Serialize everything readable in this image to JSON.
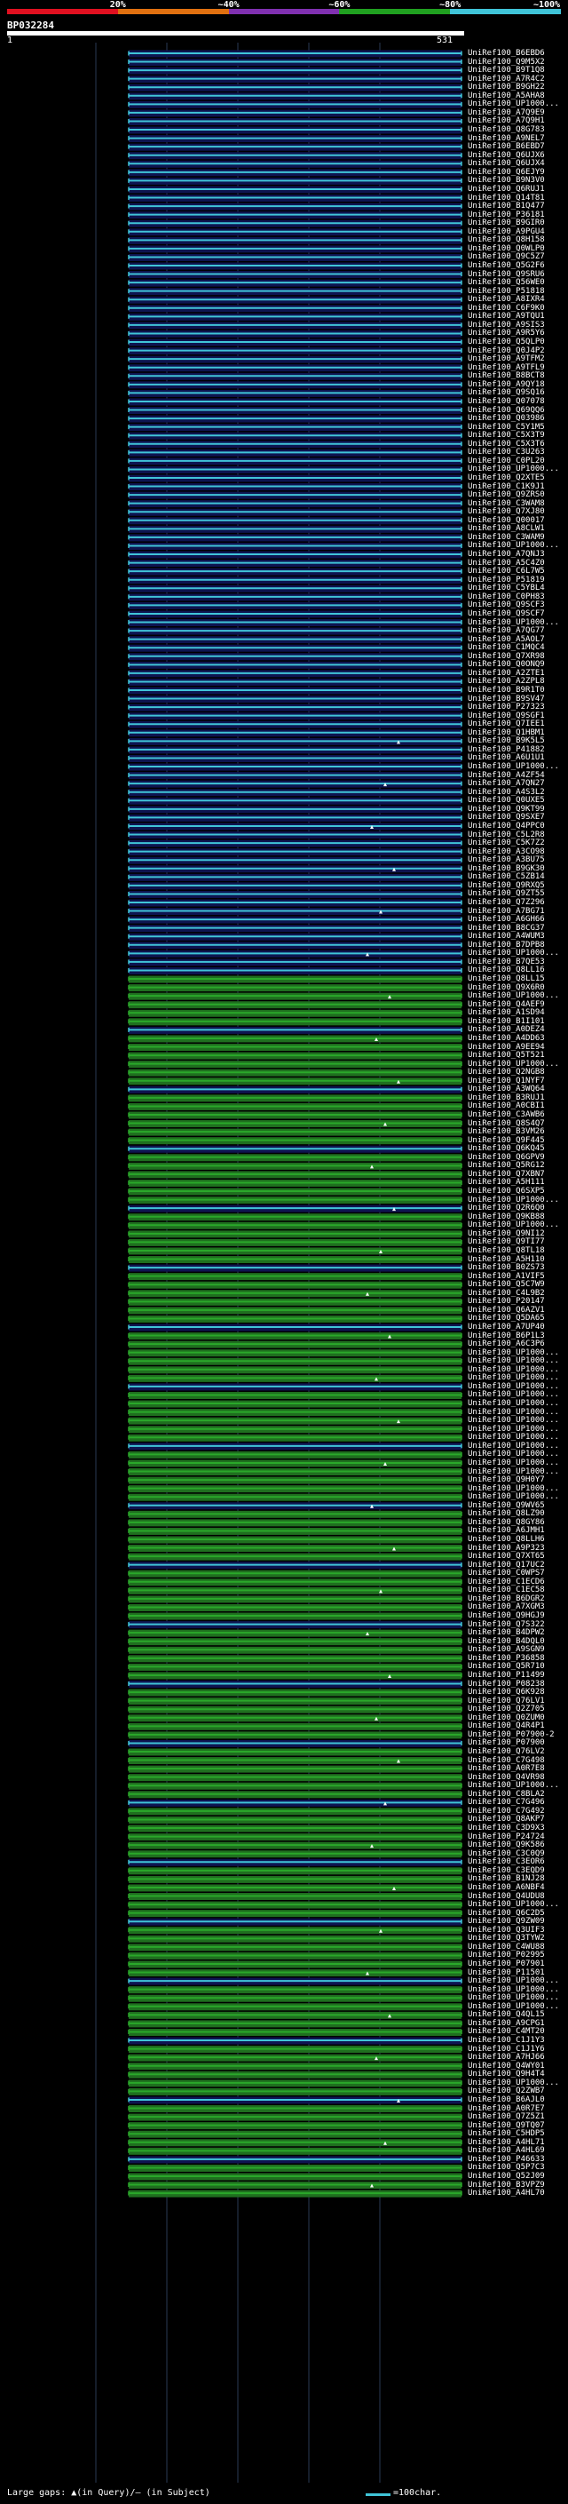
{
  "legend": {
    "colors": [
      "#e01020",
      "#e07010",
      "#8030b0",
      "#20a020",
      "#40c4d8"
    ],
    "labels": [
      "20%",
      "~40%",
      "~60%",
      "~80%",
      "~100%"
    ]
  },
  "query": {
    "name": "BP032284",
    "start": "1",
    "end": "531"
  },
  "footer": {
    "gaps": "Large gaps: ▲(in Query)/– (in Subject)",
    "scale": "=100char."
  },
  "hit_colors": {
    "cyan": "#40c4d8",
    "green": "#2aa82a",
    "navy": "#0e1450",
    "gridline": "#2a3a55"
  },
  "hit_labels": [
    "UniRef100_B6EBD6",
    "UniRef100_Q9M5X2",
    "UniRef100_B9T1Q8",
    "UniRef100_A7R4C2",
    "UniRef100_B9GH22",
    "UniRef100_A5AHA8",
    "UniRef100_UP1000...",
    "UniRef100_A7Q9E9",
    "UniRef100_A7Q9H1",
    "UniRef100_Q8G783",
    "UniRef100_A9NEL7",
    "UniRef100_B6EBD7",
    "UniRef100_Q6UJX6",
    "UniRef100_Q6UJX4",
    "UniRef100_Q6EJY9",
    "UniRef100_B9N3V0",
    "UniRef100_Q6RUJ1",
    "UniRef100_Q14T81",
    "UniRef100_B1Q477",
    "UniRef100_P36181",
    "UniRef100_B9GIR0",
    "UniRef100_A9PGU4",
    "UniRef100_Q8H158",
    "UniRef100_Q0WLP0",
    "UniRef100_Q9C5Z7",
    "UniRef100_Q5G2F6",
    "UniRef100_Q9SRU6",
    "UniRef100_Q56WE0",
    "UniRef100_P51818",
    "UniRef100_A8IXR4",
    "UniRef100_C6F9K0",
    "UniRef100_A9TQU1",
    "UniRef100_A9SIS3",
    "UniRef100_A9R5Y6",
    "UniRef100_Q5QLP0",
    "UniRef100_Q0J4P2",
    "UniRef100_A9TFM2",
    "UniRef100_A9TFL9",
    "UniRef100_B8BCT8",
    "UniRef100_A9QY18",
    "UniRef100_Q9SQ16",
    "UniRef100_Q07078",
    "UniRef100_Q69QQ6",
    "UniRef100_Q03986",
    "UniRef100_C5Y1M5",
    "UniRef100_C5X3T9",
    "UniRef100_C5X3T6",
    "UniRef100_C3U263",
    "UniRef100_C0PL20",
    "UniRef100_UP1000...",
    "UniRef100_Q2XTE5",
    "UniRef100_C1K9J1",
    "UniRef100_Q9ZRS0",
    "UniRef100_C3WAM8",
    "UniRef100_Q7XJ80",
    "UniRef100_Q00017",
    "UniRef100_A8CLW1",
    "UniRef100_C3WAM9",
    "UniRef100_UP1000...",
    "UniRef100_A7QNJ3",
    "UniRef100_A5C4Z0",
    "UniRef100_C6L7W5",
    "UniRef100_P51819",
    "UniRef100_C5YBL4",
    "UniRef100_C0PH83",
    "UniRef100_Q9SCF3",
    "UniRef100_Q9SCF7",
    "UniRef100_UP1000...",
    "UniRef100_A7QG77",
    "UniRef100_A5AOL7",
    "UniRef100_C1MQC4",
    "UniRef100_Q7XR98",
    "UniRef100_Q0ONQ9",
    "UniRef100_A2ZTE1",
    "UniRef100_A2ZPL8",
    "UniRef100_B9R1T0",
    "UniRef100_B9SV47",
    "UniRef100_P27323",
    "UniRef100_Q9SGF1",
    "UniRef100_Q7IEE1",
    "UniRef100_Q1HBM1",
    "UniRef100_B9K5L5",
    "UniRef100_P41882",
    "UniRef100_A6U1U1",
    "UniRef100_UP1000...",
    "UniRef100_A4ZF54",
    "UniRef100_A7QN27",
    "UniRef100_A4S3L2",
    "UniRef100_Q0UXE5",
    "UniRef100_Q9KT99",
    "UniRef100_Q9SXE7",
    "UniRef100_Q4PPC0",
    "UniRef100_C5L2R8",
    "UniRef100_C5K7Z2",
    "UniRef100_A3CO98",
    "UniRef100_A3BU75",
    "UniRef100_B9GK30",
    "UniRef100_C5ZB14",
    "UniRef100_Q9RXQ5",
    "UniRef100_Q9ZT55",
    "UniRef100_Q7Z296",
    "UniRef100_A7BG71",
    "UniRef100_A6GH66",
    "UniRef100_B8CG37",
    "UniRef100_A4WUM3",
    "UniRef100_B7DPB8",
    "UniRef100_UP1000...",
    "UniRef100_B7QE53",
    "UniRef100_Q8LL16",
    "UniRef100_Q8LL15",
    "UniRef100_Q9X6R0",
    "UniRef100_UP1000...",
    "UniRef100_Q4AEF9",
    "UniRef100_A1SD94",
    "UniRef100_B1I101",
    "UniRef100_A0DEZ4",
    "UniRef100_A4DD63",
    "UniRef100_A9EE94",
    "UniRef100_Q5T521",
    "UniRef100_UP1000...",
    "UniRef100_Q2NGB8",
    "UniRef100_Q1NYF7",
    "UniRef100_A3WQ64",
    "UniRef100_B3RUJ1",
    "UniRef100_A0CBI1",
    "UniRef100_C3AWB6",
    "UniRef100_Q8S4Q7",
    "UniRef100_B3VM26",
    "UniRef100_Q9F445",
    "UniRef100_Q6KQ45",
    "UniRef100_Q6GPV9",
    "UniRef100_Q5RG12",
    "UniRef100_Q7XBN7",
    "UniRef100_A5H111",
    "UniRef100_Q6SXP5",
    "UniRef100_UP1000...",
    "UniRef100_Q2R6Q0",
    "UniRef100_Q9KB88",
    "UniRef100_UP1000...",
    "UniRef100_Q9NI12",
    "UniRef100_Q9TI77",
    "UniRef100_Q8TL18",
    "UniRef100_A5H110",
    "UniRef100_B0ZS73",
    "UniRef100_A1VIF5",
    "UniRef100_Q5C7W9",
    "UniRef100_C4L9B2",
    "UniRef100_P20147",
    "UniRef100_Q6AZV1",
    "UniRef100_Q5DA65",
    "UniRef100_A7UP40",
    "UniRef100_B6P1L3",
    "UniRef100_A6C3P6",
    "UniRef100_UP1000...",
    "UniRef100_UP1000...",
    "UniRef100_UP1000...",
    "UniRef100_UP1000...",
    "UniRef100_UP1000...",
    "UniRef100_UP1000...",
    "UniRef100_UP1000...",
    "UniRef100_UP1000...",
    "UniRef100_UP1000...",
    "UniRef100_UP1000...",
    "UniRef100_UP1000...",
    "UniRef100_UP1000...",
    "UniRef100_UP1000...",
    "UniRef100_UP1000...",
    "UniRef100_UP1000...",
    "UniRef100_Q9H0Y7",
    "UniRef100_UP1000...",
    "UniRef100_UP1000...",
    "UniRef100_Q9WV65",
    "UniRef100_Q8LZ90",
    "UniRef100_Q8GY86",
    "UniRef100_A6JMH1",
    "UniRef100_Q8LLH6",
    "UniRef100_A9P323",
    "UniRef100_Q7XT65",
    "UniRef100_Q17UC2",
    "UniRef100_C0WPS7",
    "UniRef100_C1ECD6",
    "UniRef100_C1EC58",
    "UniRef100_B6DGR2",
    "UniRef100_A7XGM3",
    "UniRef100_Q9HGJ9",
    "UniRef100_Q7S322",
    "UniRef100_B4DPW2",
    "UniRef100_B4DQL0",
    "UniRef100_A9SGN9",
    "UniRef100_P36858",
    "UniRef100_Q5R710",
    "UniRef100_P11499",
    "UniRef100_P08238",
    "UniRef100_Q6K928",
    "UniRef100_Q76LV1",
    "UniRef100_Q2Z705",
    "UniRef100_Q0ZUM0",
    "UniRef100_Q4R4P1",
    "UniRef100_P07900-2",
    "UniRef100_P07900",
    "UniRef100_Q76LV2",
    "UniRef100_C7G498",
    "UniRef100_A0R7E8",
    "UniRef100_Q4VR98",
    "UniRef100_UP1000...",
    "UniRef100_C8BLA2",
    "UniRef100_C7G496",
    "UniRef100_C7G492",
    "UniRef100_Q8AKP7",
    "UniRef100_C3D9X3",
    "UniRef100_P24724",
    "UniRef100_Q9K586",
    "UniRef100_C3C0Q9",
    "UniRef100_C3EOR6",
    "UniRef100_C3EQD9",
    "UniRef100_B1NJ28",
    "UniRef100_A6NBF4",
    "UniRef100_Q4UDU8",
    "UniRef100_UP1000...",
    "UniRef100_Q6C2D5",
    "UniRef100_Q9ZW09",
    "UniRef100_Q3UIF3",
    "UniRef100_Q3TYW2",
    "UniRef100_C4WU88",
    "UniRef100_P02995",
    "UniRef100_P07901",
    "UniRef100_P11501",
    "UniRef100_UP1000...",
    "UniRef100_UP1000...",
    "UniRef100_UP1000...",
    "UniRef100_UP1000...",
    "UniRef100_Q4QL15",
    "UniRef100_A9CPG1",
    "UniRef100_C4MT20",
    "UniRef100_C1J1Y3",
    "UniRef100_C1J1Y6",
    "UniRef100_A7HJ66",
    "UniRef100_Q4WY01",
    "UniRef100_Q9H4T4",
    "UniRef100_UP1000...",
    "UniRef100_Q2ZWB7",
    "UniRef100_B6AJL0",
    "UniRef100_A0R7E7",
    "UniRef100_Q7Z5Z1",
    "UniRef100_Q9TQ07",
    "UniRef100_C5HDP5",
    "UniRef100_A4HL71",
    "UniRef100_A4HL69",
    "UniRef100_P46633",
    "UniRef100_Q5P7C3",
    "UniRef100_Q52J09",
    "UniRef100_B3VPZ9",
    "UniRef100_A4HL70"
  ]
}
